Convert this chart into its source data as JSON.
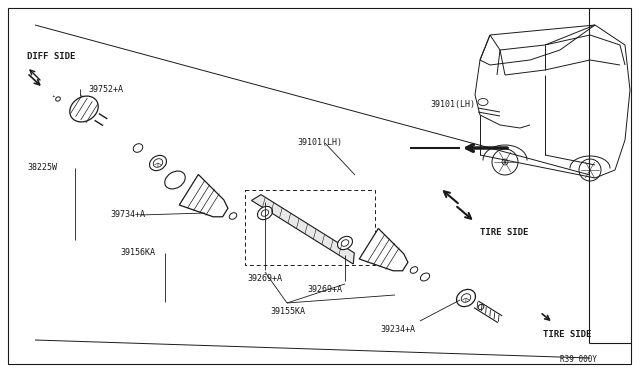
{
  "bg_color": "#ffffff",
  "line_color": "#1a1a1a",
  "text_color": "#1a1a1a",
  "labels": {
    "diff_side": "DIFF SIDE",
    "tire_side_upper": "TIRE SIDE",
    "tire_side_lower": "TIRE SIDE",
    "part_39752": "39752+A",
    "part_38225": "38225W",
    "part_39734": "39734+A",
    "part_39156": "39156KA",
    "part_39101_lh1": "39101(LH)",
    "part_39101_lh2": "39101(LH)",
    "part_39269_1": "39269+A",
    "part_39269_2": "39269+A",
    "part_39155": "39155KA",
    "part_39234": "39234+A",
    "diag_num": "R39 000Y"
  },
  "fs": 6.0,
  "fs_bold": 6.5
}
